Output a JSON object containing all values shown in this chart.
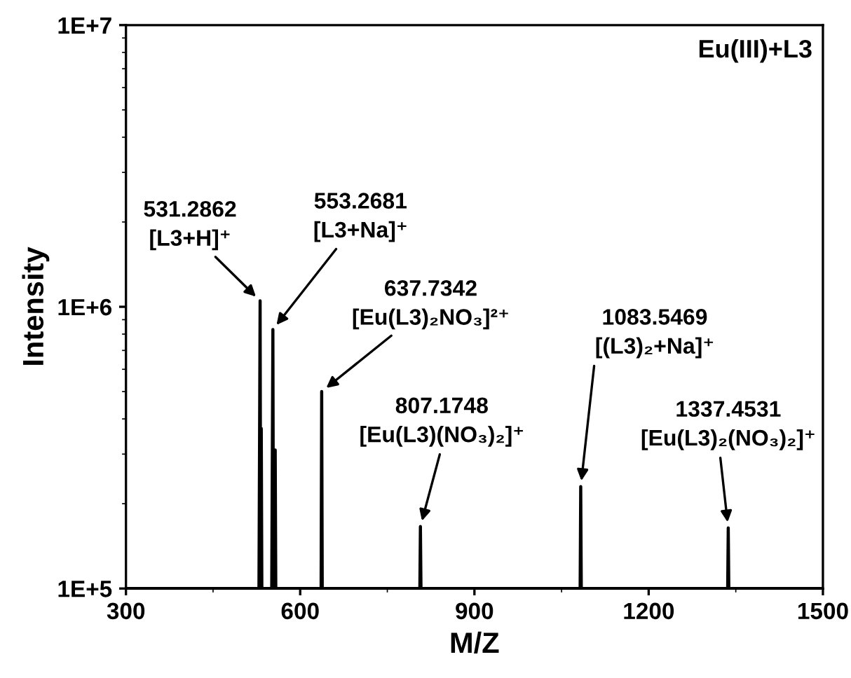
{
  "chart_data": {
    "type": "line",
    "title": "Eu(III)+L3",
    "xlabel": "M/Z",
    "ylabel": "Intensity",
    "log": "y",
    "xlim": [
      300,
      1500
    ],
    "xticks": [
      300,
      600,
      900,
      1200,
      1500
    ],
    "ylim": [
      100000,
      10000000
    ],
    "yticks": [
      {
        "value": 100000,
        "label": "1E+5"
      },
      {
        "value": 1000000,
        "label": "1E+6"
      },
      {
        "value": 10000000,
        "label": "1E+7"
      }
    ],
    "grid": false,
    "marker": "none",
    "line_style": "solid",
    "series": [
      {
        "color": "#000000",
        "x": [
          300,
          529,
          531,
          532,
          533,
          534,
          535,
          551,
          553,
          554,
          556,
          557,
          558,
          636,
          637,
          638,
          806,
          807,
          808,
          1082,
          1083,
          1084,
          1336,
          1337,
          1338,
          1500
        ],
        "values": [
          100000,
          100000,
          1050000,
          100000,
          370000,
          100000,
          100000,
          100000,
          830000,
          100000,
          100000,
          310000,
          100000,
          100000,
          500000,
          100000,
          100000,
          166000,
          100000,
          100000,
          230000,
          100000,
          100000,
          164000,
          100000,
          100000
        ]
      }
    ],
    "annotations": [
      {
        "text": "531.2862\n[L3+H]⁺",
        "x": 531,
        "y": 1050000
      },
      {
        "text": "553.2681\n[L3+Na]⁺",
        "x": 553,
        "y": 830000
      },
      {
        "text": "637.7342\n[Eu(L3)₂NO₃]²⁺",
        "x": 637,
        "y": 500000
      },
      {
        "text": "807.1748\n[Eu(L3)(NO₃)₂]⁺",
        "x": 807,
        "y": 166000
      },
      {
        "text": "1083.5469\n[(L3)₂+Na]⁺",
        "x": 1083,
        "y": 230000
      },
      {
        "text": "1337.4531\n[Eu(L3)₂(NO₃)₂]⁺",
        "x": 1337,
        "y": 164000
      }
    ]
  }
}
